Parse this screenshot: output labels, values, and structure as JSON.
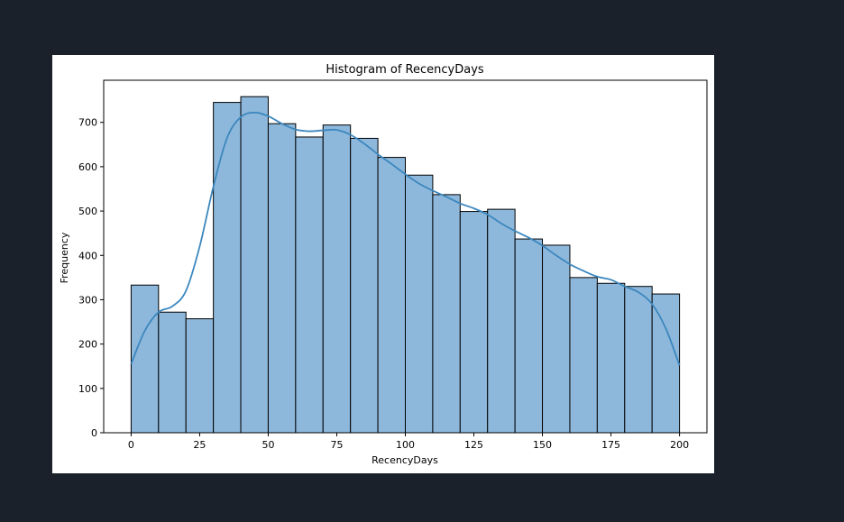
{
  "chart_data": {
    "type": "bar",
    "title": "Histogram of RecencyDays",
    "xlabel": "RecencyDays",
    "ylabel": "Frequency",
    "xlim": [
      -10,
      210
    ],
    "ylim": [
      0,
      795
    ],
    "xticks": [
      0,
      25,
      50,
      75,
      100,
      125,
      150,
      175,
      200
    ],
    "yticks": [
      0,
      100,
      200,
      300,
      400,
      500,
      600,
      700
    ],
    "bins": [
      {
        "start": 0,
        "end": 10,
        "value": 333
      },
      {
        "start": 10,
        "end": 20,
        "value": 272
      },
      {
        "start": 20,
        "end": 30,
        "value": 257
      },
      {
        "start": 30,
        "end": 40,
        "value": 745
      },
      {
        "start": 40,
        "end": 50,
        "value": 758
      },
      {
        "start": 50,
        "end": 60,
        "value": 697
      },
      {
        "start": 60,
        "end": 70,
        "value": 667
      },
      {
        "start": 70,
        "end": 80,
        "value": 694
      },
      {
        "start": 80,
        "end": 90,
        "value": 664
      },
      {
        "start": 90,
        "end": 100,
        "value": 621
      },
      {
        "start": 100,
        "end": 110,
        "value": 581
      },
      {
        "start": 110,
        "end": 120,
        "value": 537
      },
      {
        "start": 120,
        "end": 130,
        "value": 499
      },
      {
        "start": 130,
        "end": 140,
        "value": 504
      },
      {
        "start": 140,
        "end": 150,
        "value": 437
      },
      {
        "start": 150,
        "end": 160,
        "value": 423
      },
      {
        "start": 160,
        "end": 170,
        "value": 350
      },
      {
        "start": 170,
        "end": 180,
        "value": 337
      },
      {
        "start": 180,
        "end": 190,
        "value": 330
      },
      {
        "start": 190,
        "end": 200,
        "value": 313
      }
    ],
    "kde": {
      "x": [
        0,
        5,
        10,
        15,
        20,
        25,
        30,
        35,
        40,
        45,
        50,
        55,
        60,
        65,
        70,
        75,
        80,
        85,
        90,
        95,
        100,
        105,
        110,
        115,
        120,
        125,
        130,
        135,
        140,
        145,
        150,
        155,
        160,
        165,
        170,
        175,
        180,
        185,
        190,
        195,
        200
      ],
      "y": [
        155,
        230,
        272,
        285,
        320,
        420,
        555,
        665,
        712,
        722,
        714,
        697,
        684,
        680,
        682,
        683,
        672,
        652,
        628,
        606,
        583,
        562,
        546,
        532,
        517,
        506,
        492,
        472,
        455,
        440,
        422,
        400,
        380,
        365,
        352,
        345,
        330,
        317,
        290,
        235,
        152
      ]
    },
    "colors": {
      "bar_fill": "#8db8db",
      "bar_edge": "#000000",
      "kde_line": "#3c87be"
    },
    "grid": false,
    "legend": "none"
  }
}
